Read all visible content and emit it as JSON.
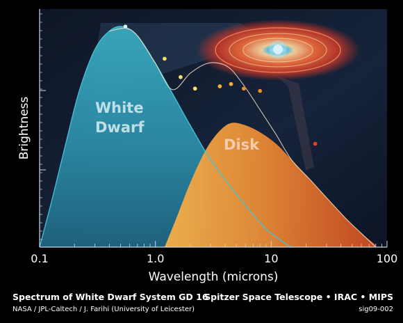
{
  "chart_data": {
    "type": "line",
    "title": "Spectrum of White Dwarf System GD 16",
    "xlabel": "Wavelength (microns)",
    "ylabel": "Brightness",
    "x_scale": "log",
    "xlim": [
      0.1,
      100
    ],
    "x_ticks": [
      "0.1",
      "1.0",
      "10",
      "100"
    ],
    "ylim": [
      0,
      1
    ],
    "grid": false,
    "labels": {
      "white_dwarf_line1": "White",
      "white_dwarf_line2": "Dwarf",
      "disk": "Disk"
    },
    "colors": {
      "white_dwarf_fill": "#2f95b0",
      "white_dwarf_line": "#46c3d6",
      "disk_fill": "#e58a35",
      "disk_edge": "#f3c98d",
      "point_light": "#f5e06a",
      "point_orange": "#e8902e",
      "point_red": "#e2452a",
      "background": "#111a2c"
    },
    "series": [
      {
        "name": "White Dwarf",
        "style": "filled-curve",
        "x": [
          0.1,
          0.13,
          0.17,
          0.22,
          0.3,
          0.4,
          0.52,
          0.7,
          1.0,
          1.4,
          2.0,
          3.0,
          4.5,
          6.5,
          9.0,
          12.0,
          15.0
        ],
        "y": [
          0.0,
          0.22,
          0.46,
          0.68,
          0.86,
          0.94,
          0.96,
          0.92,
          0.8,
          0.67,
          0.53,
          0.38,
          0.26,
          0.16,
          0.08,
          0.03,
          0.0
        ]
      },
      {
        "name": "Disk",
        "style": "filled-curve",
        "x": [
          1.2,
          1.5,
          2.0,
          2.7,
          3.5,
          4.5,
          6.0,
          8.0,
          11.0,
          15.0,
          22.0,
          32.0,
          45.0,
          60.0,
          80.0
        ],
        "y": [
          0.0,
          0.12,
          0.28,
          0.42,
          0.5,
          0.54,
          0.53,
          0.5,
          0.45,
          0.38,
          0.29,
          0.2,
          0.12,
          0.06,
          0.01
        ]
      },
      {
        "name": "Observations",
        "style": "points",
        "x": [
          0.55,
          1.2,
          1.65,
          2.2,
          3.6,
          4.5,
          5.8,
          8.0,
          24.0
        ],
        "y": [
          0.96,
          0.82,
          0.74,
          0.69,
          0.7,
          0.71,
          0.69,
          0.68,
          0.45
        ],
        "colors": [
          "#dff4f5",
          "#f5e06a",
          "#f5e06a",
          "#f5e06a",
          "#f0b040",
          "#f0b040",
          "#e8902e",
          "#e8902e",
          "#e2452a"
        ]
      }
    ]
  },
  "captions": {
    "title": "Spectrum of White Dwarf System GD 16",
    "credit": "NASA / JPL-Caltech / J. Farihi (University of Leicester)",
    "mission": "Spitzer Space Telescope • IRAC • MIPS",
    "id": "sig09-002"
  }
}
